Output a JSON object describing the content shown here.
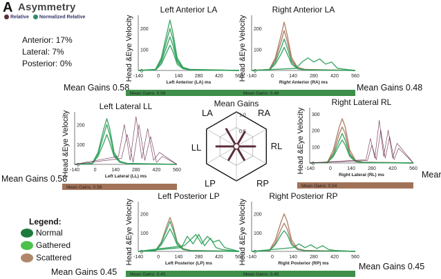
{
  "header": {
    "panel_letter": "A",
    "title": "Asymmetry",
    "legend_relative": "Relative",
    "legend_normalized": "Normalized Relative",
    "color_relative": "#5a2d3a",
    "color_normalized": "#2e8b6a"
  },
  "asymmetry": [
    {
      "label": "Anterior:",
      "value": "17%"
    },
    {
      "label": "Lateral:",
      "value": "7%"
    },
    {
      "label": "Posterior:",
      "value": "0%"
    }
  ],
  "legend": {
    "title": "Legend:",
    "items": [
      {
        "label": "Normal",
        "color": "#1e7a3c"
      },
      {
        "label": "Gathered",
        "color": "#4cc24c"
      },
      {
        "label": "Scattered",
        "color": "#b0866a"
      }
    ]
  },
  "colors": {
    "green": "#2e9e5a",
    "brown": "#a9785e",
    "purple": "#6a3050",
    "bar_green": "#3f8f4a",
    "bar_brown": "#a27258"
  },
  "mean_gain_labels": {
    "la": "Mean Gains 0.58",
    "ra": "Mean Gains 0.48",
    "ll": "Mean Gains 0.58",
    "rl": "Mear",
    "lp": "Mean Gains 0.45",
    "rp": "Mean Gains 0.45"
  },
  "chart_data": [
    {
      "type": "line",
      "id": "la",
      "title": "Left Anterior LA",
      "xlabel": "Left Anterior (LA) ms",
      "ylabel": "Head &Eye Velocity",
      "x_ticks": [
        "-140",
        "0",
        "140",
        "280",
        "420",
        "560"
      ],
      "y_ticks": [
        "200",
        "100",
        "0"
      ],
      "xlim": [
        -140,
        560
      ],
      "ylim": [
        0,
        250
      ],
      "bar_label": "Mean Gains: 0.58",
      "bar_color": "green",
      "series": [
        {
          "color": "green",
          "x": [
            -140,
            -20,
            20,
            60,
            80,
            100,
            130,
            170,
            220,
            560
          ],
          "y": [
            0,
            5,
            60,
            180,
            240,
            180,
            60,
            15,
            5,
            0
          ]
        },
        {
          "color": "green",
          "x": [
            -140,
            -20,
            20,
            60,
            80,
            100,
            130,
            170,
            220,
            560
          ],
          "y": [
            0,
            4,
            50,
            150,
            200,
            150,
            50,
            12,
            4,
            0
          ]
        },
        {
          "color": "green",
          "x": [
            -140,
            -20,
            20,
            60,
            80,
            100,
            130,
            170,
            220,
            560
          ],
          "y": [
            0,
            3,
            40,
            120,
            160,
            120,
            40,
            10,
            3,
            0
          ]
        },
        {
          "color": "green",
          "x": [
            -140,
            -20,
            20,
            60,
            80,
            100,
            130,
            170,
            220,
            560
          ],
          "y": [
            0,
            2,
            30,
            90,
            120,
            90,
            30,
            8,
            2,
            0
          ]
        }
      ]
    },
    {
      "type": "line",
      "id": "ra",
      "title": "Right Anterior LA",
      "xlabel": "Right Anterior (RA) ms",
      "ylabel": "Head &Eye Velocity",
      "x_ticks": [
        "-140",
        "0",
        "140",
        "280",
        "420",
        "560"
      ],
      "y_ticks": [
        "200",
        "100",
        "0"
      ],
      "xlim": [
        -140,
        560
      ],
      "ylim": [
        0,
        250
      ],
      "bar_label": "Mean Gains: 0.48",
      "bar_color": "green",
      "series": [
        {
          "color": "brown",
          "x": [
            -140,
            -20,
            20,
            60,
            80,
            100,
            130,
            170,
            220,
            560
          ],
          "y": [
            0,
            5,
            60,
            170,
            230,
            170,
            60,
            15,
            5,
            0
          ]
        },
        {
          "color": "brown",
          "x": [
            -140,
            -20,
            20,
            60,
            80,
            100,
            130,
            170,
            220,
            560
          ],
          "y": [
            0,
            4,
            50,
            140,
            190,
            140,
            50,
            12,
            4,
            0
          ]
        },
        {
          "color": "green",
          "x": [
            -140,
            -20,
            20,
            60,
            80,
            100,
            130,
            170,
            220,
            560
          ],
          "y": [
            0,
            3,
            40,
            110,
            150,
            110,
            40,
            10,
            3,
            0
          ]
        },
        {
          "color": "green",
          "x": [
            -140,
            -20,
            20,
            60,
            80,
            100,
            130,
            170,
            220,
            560
          ],
          "y": [
            0,
            2,
            30,
            80,
            110,
            80,
            30,
            8,
            2,
            0
          ]
        },
        {
          "color": "green",
          "x": [
            -140,
            160,
            200,
            240,
            280,
            320,
            360,
            400,
            440,
            560
          ],
          "y": [
            0,
            10,
            40,
            60,
            40,
            55,
            30,
            40,
            10,
            0
          ]
        }
      ]
    },
    {
      "type": "line",
      "id": "ll",
      "title": "Left Lateral LL",
      "xlabel": "Left Lateral (LL) ms",
      "ylabel": "Head &Eye Velocity",
      "x_ticks": [
        "-140",
        "0",
        "140",
        "280",
        "420",
        "560"
      ],
      "y_ticks": [
        "200",
        "100",
        "0"
      ],
      "xlim": [
        -140,
        560
      ],
      "ylim": [
        0,
        250
      ],
      "bar_label": "Mean Gains: 0.58",
      "bar_color": "brown",
      "series": [
        {
          "color": "green",
          "x": [
            -140,
            -20,
            20,
            60,
            80,
            100,
            130,
            170,
            220,
            560
          ],
          "y": [
            0,
            5,
            60,
            180,
            230,
            180,
            60,
            15,
            5,
            0
          ]
        },
        {
          "color": "green",
          "x": [
            -140,
            -20,
            20,
            60,
            80,
            100,
            130,
            170,
            220,
            560
          ],
          "y": [
            0,
            4,
            50,
            150,
            200,
            150,
            50,
            12,
            4,
            0
          ]
        },
        {
          "color": "green",
          "x": [
            -140,
            -20,
            20,
            60,
            80,
            100,
            130,
            170,
            220,
            560
          ],
          "y": [
            0,
            3,
            40,
            110,
            150,
            110,
            40,
            10,
            3,
            0
          ]
        },
        {
          "color": "purple",
          "x": [
            -140,
            160,
            200,
            240,
            280,
            320,
            360,
            400,
            440,
            560
          ],
          "y": [
            0,
            40,
            200,
            20,
            240,
            30,
            180,
            20,
            60,
            0
          ]
        },
        {
          "color": "purple",
          "x": [
            -140,
            180,
            220,
            260,
            300,
            340,
            380,
            420,
            460,
            560
          ],
          "y": [
            0,
            30,
            150,
            10,
            200,
            20,
            140,
            10,
            40,
            0
          ]
        }
      ]
    },
    {
      "type": "line",
      "id": "rl",
      "title": "Right Lateral RL",
      "xlabel": "Right Lateral (RL) ms",
      "ylabel": "Head &Eye Velocity",
      "x_ticks": [
        "-140",
        "0",
        "140",
        "280",
        "420",
        "560"
      ],
      "y_ticks": [
        "300",
        "200",
        "100",
        "0"
      ],
      "xlim": [
        -140,
        560
      ],
      "ylim": [
        0,
        320
      ],
      "bar_label": "Mean Gains: 0.54",
      "bar_color": "brown",
      "series": [
        {
          "color": "brown",
          "x": [
            -140,
            -20,
            20,
            60,
            80,
            100,
            130,
            170,
            220,
            560
          ],
          "y": [
            0,
            5,
            80,
            220,
            270,
            220,
            80,
            15,
            5,
            0
          ]
        },
        {
          "color": "brown",
          "x": [
            -140,
            -20,
            20,
            60,
            80,
            100,
            130,
            170,
            220,
            560
          ],
          "y": [
            0,
            4,
            60,
            180,
            220,
            180,
            60,
            12,
            4,
            0
          ]
        },
        {
          "color": "green",
          "x": [
            -140,
            -20,
            20,
            60,
            80,
            100,
            130,
            170,
            220,
            560
          ],
          "y": [
            0,
            3,
            50,
            140,
            180,
            140,
            50,
            10,
            3,
            0
          ]
        },
        {
          "color": "green",
          "x": [
            -140,
            -20,
            20,
            60,
            80,
            100,
            130,
            170,
            220,
            560
          ],
          "y": [
            0,
            2,
            40,
            110,
            140,
            110,
            40,
            8,
            2,
            0
          ]
        },
        {
          "color": "purple",
          "x": [
            -140,
            240,
            270,
            300,
            330,
            360,
            390,
            420,
            450,
            560
          ],
          "y": [
            0,
            20,
            150,
            30,
            260,
            40,
            200,
            30,
            120,
            0
          ]
        },
        {
          "color": "purple",
          "x": [
            -140,
            250,
            280,
            310,
            340,
            370,
            400,
            430,
            460,
            560
          ],
          "y": [
            0,
            15,
            110,
            20,
            200,
            30,
            160,
            20,
            90,
            0
          ]
        }
      ]
    },
    {
      "type": "line",
      "id": "lp",
      "title": "Left Posterior LP",
      "xlabel": "Left Posterior (LP) ms",
      "ylabel": "Head &Eye Velocity",
      "x_ticks": [
        "-140",
        "0",
        "140",
        "280",
        "420",
        "560"
      ],
      "y_ticks": [
        "200",
        "100",
        "0"
      ],
      "xlim": [
        -140,
        560
      ],
      "ylim": [
        0,
        250
      ],
      "bar_label": "Mean Gains: 0.45",
      "bar_color": "green",
      "series": [
        {
          "color": "brown",
          "x": [
            -140,
            -20,
            20,
            60,
            80,
            100,
            130,
            170,
            220,
            560
          ],
          "y": [
            0,
            5,
            50,
            140,
            180,
            140,
            50,
            15,
            5,
            0
          ]
        },
        {
          "color": "green",
          "x": [
            -140,
            -20,
            20,
            60,
            80,
            100,
            130,
            170,
            220,
            560
          ],
          "y": [
            0,
            4,
            45,
            120,
            160,
            120,
            45,
            12,
            4,
            0
          ]
        },
        {
          "color": "green",
          "x": [
            -140,
            -20,
            20,
            60,
            80,
            100,
            130,
            170,
            220,
            560
          ],
          "y": [
            0,
            3,
            35,
            90,
            120,
            90,
            35,
            10,
            3,
            0
          ]
        },
        {
          "color": "green",
          "x": [
            -140,
            160,
            200,
            240,
            280,
            320,
            360,
            400,
            440,
            560
          ],
          "y": [
            0,
            20,
            80,
            40,
            90,
            30,
            70,
            20,
            10,
            0
          ]
        },
        {
          "color": "green",
          "x": [
            -140,
            180,
            220,
            260,
            300,
            340,
            380,
            420,
            460,
            560
          ],
          "y": [
            0,
            30,
            60,
            90,
            40,
            80,
            50,
            60,
            20,
            0
          ]
        }
      ]
    },
    {
      "type": "line",
      "id": "rp",
      "title": "Right Posterior RP",
      "xlabel": "Right Posterior (RP) ms",
      "ylabel": "Head &Eye Velocity",
      "x_ticks": [
        "-140",
        "0",
        "140",
        "280",
        "420",
        "560"
      ],
      "y_ticks": [
        "200",
        "100",
        "0"
      ],
      "xlim": [
        -140,
        560
      ],
      "ylim": [
        0,
        250
      ],
      "bar_label": "Mean Gains: 0.45",
      "bar_color": "green",
      "series": [
        {
          "color": "brown",
          "x": [
            -140,
            -20,
            20,
            60,
            80,
            100,
            130,
            170,
            220,
            560
          ],
          "y": [
            0,
            5,
            60,
            160,
            200,
            160,
            60,
            15,
            5,
            0
          ]
        },
        {
          "color": "brown",
          "x": [
            -140,
            -20,
            20,
            60,
            80,
            100,
            130,
            170,
            220,
            560
          ],
          "y": [
            0,
            4,
            45,
            120,
            150,
            120,
            45,
            12,
            4,
            0
          ]
        },
        {
          "color": "green",
          "x": [
            -140,
            -20,
            20,
            60,
            80,
            100,
            130,
            170,
            220,
            560
          ],
          "y": [
            0,
            3,
            35,
            90,
            110,
            90,
            35,
            10,
            3,
            0
          ]
        },
        {
          "color": "green",
          "x": [
            -140,
            140,
            180,
            220,
            260,
            300,
            340,
            380,
            420,
            560
          ],
          "y": [
            0,
            20,
            40,
            20,
            35,
            15,
            30,
            10,
            5,
            0
          ]
        }
      ]
    },
    {
      "type": "radar",
      "id": "hex",
      "title": "Mean Gains",
      "axes": [
        "LA",
        "RA",
        "RL",
        "RP",
        "LP",
        "LL"
      ],
      "rings": [
        {
          "label": "1.0",
          "value": 1.0
        },
        {
          "label": "0.5",
          "value": 0.5
        }
      ],
      "values": [
        0.58,
        0.48,
        0.54,
        0.45,
        0.45,
        0.58
      ]
    }
  ]
}
